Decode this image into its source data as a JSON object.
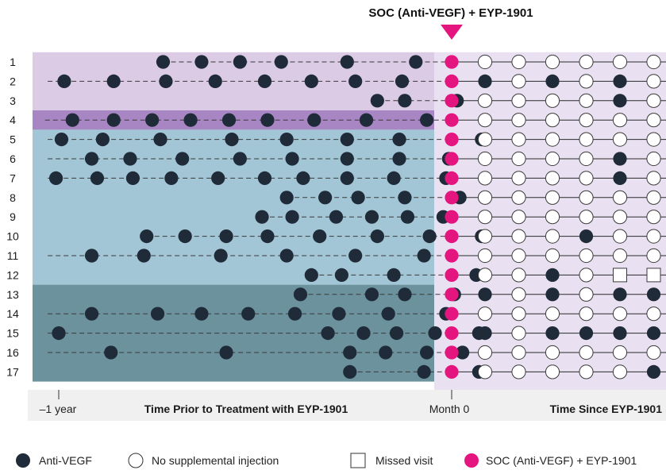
{
  "chart_data": {
    "type": "scatter",
    "header_label": "SOC (Anti-VEGF) + EYP-1901",
    "axis": {
      "minus_one_year": "–1 year",
      "prior_title": "Time Prior to Treatment with EYP-1901",
      "month0": "Month 0",
      "since_title": "Time Since EYP-1901"
    },
    "legend": [
      {
        "key": "anti_vegf",
        "label": "Anti-VEGF"
      },
      {
        "key": "none",
        "label": "No supplemental injection"
      },
      {
        "key": "missed",
        "label": "Missed visit"
      },
      {
        "key": "soc",
        "label": "SOC (Anti-VEGF) + EYP-1901"
      }
    ],
    "colors": {
      "anti_vegf": "#1f2b38",
      "soc": "#e5157f",
      "band_1_3": "#dccbe5",
      "band_4": "#a886c3",
      "band_5_12": "#a3c6d6",
      "band_13_17": "#6c929e",
      "right_panel": "#e9e1f1",
      "axis_band": "#f0f0f0"
    },
    "bands": [
      {
        "rows": [
          1,
          3
        ],
        "color_key": "band_1_3"
      },
      {
        "rows": [
          4,
          4
        ],
        "color_key": "band_4"
      },
      {
        "rows": [
          5,
          12
        ],
        "color_key": "band_5_12"
      },
      {
        "rows": [
          13,
          17
        ],
        "color_key": "band_13_17"
      }
    ],
    "patients": [
      {
        "id": "1",
        "prior": [
          -0.62,
          -0.48,
          -0.34,
          -0.19,
          0.05,
          0.3
        ],
        "line_start": -0.62,
        "post": [
          0,
          0,
          0,
          0,
          0,
          0
        ]
      },
      {
        "id": "2",
        "prior": [
          -0.98,
          -0.8,
          -0.61,
          -0.43,
          -0.25,
          -0.08,
          0.08,
          0.25
        ],
        "line_start": -1.04,
        "post": [
          1,
          0,
          1,
          0,
          1,
          0
        ]
      },
      {
        "id": "3",
        "prior": [
          0.16,
          0.26,
          0.45
        ],
        "line_start": 0.16,
        "post": [
          0,
          0,
          0,
          0,
          1,
          0
        ]
      },
      {
        "id": "4",
        "prior": [
          -0.95,
          -0.8,
          -0.66,
          -0.52,
          -0.38,
          -0.24,
          -0.07,
          0.12,
          0.34
        ],
        "line_start": -1.05,
        "post": [
          0,
          0,
          0,
          0,
          0,
          0
        ]
      },
      {
        "id": "5",
        "prior": [
          -0.99,
          -0.84,
          -0.63,
          -0.37,
          -0.17,
          0.05,
          0.24,
          0.54
        ],
        "line_start": -1.04,
        "post": [
          0,
          0,
          0,
          0,
          0,
          0
        ]
      },
      {
        "id": "6",
        "prior": [
          -0.88,
          -0.74,
          -0.55,
          -0.34,
          -0.15,
          0.05,
          0.24,
          0.42
        ],
        "line_start": -1.04,
        "post": [
          0,
          0,
          0,
          0,
          1,
          0
        ]
      },
      {
        "id": "7",
        "prior": [
          -1.01,
          -0.86,
          -0.73,
          -0.59,
          -0.42,
          -0.25,
          -0.11,
          0.05,
          0.22,
          0.41
        ],
        "line_start": -1.04,
        "post": [
          0,
          0,
          0,
          0,
          1,
          0
        ]
      },
      {
        "id": "8",
        "prior": [
          -0.17,
          -0.03,
          0.09,
          0.26,
          0.46
        ],
        "line_start": -0.17,
        "post": [
          0,
          0,
          0,
          0,
          0,
          0
        ]
      },
      {
        "id": "9",
        "prior": [
          -0.26,
          -0.15,
          0.01,
          0.14,
          0.27,
          0.4
        ],
        "line_start": -0.26,
        "post": [
          0,
          0,
          0,
          0,
          0,
          0
        ]
      },
      {
        "id": "10",
        "prior": [
          -0.68,
          -0.54,
          -0.39,
          -0.24,
          -0.05,
          0.16,
          0.35,
          0.54
        ],
        "line_start": -0.68,
        "post": [
          0,
          0,
          0,
          1,
          0,
          0
        ]
      },
      {
        "id": "11",
        "prior": [
          -0.88,
          -0.69,
          -0.41,
          -0.17,
          0.08,
          0.33
        ],
        "line_start": -1.04,
        "post": [
          0,
          0,
          0,
          0,
          0,
          0
        ]
      },
      {
        "id": "12",
        "prior": [
          -0.08,
          0.03,
          0.22,
          0.52
        ],
        "line_start": -0.08,
        "post": [
          0,
          0,
          1,
          0,
          2,
          2
        ]
      },
      {
        "id": "13",
        "prior": [
          -0.12,
          0.14,
          0.26,
          0.44
        ],
        "line_start": -0.12,
        "post": [
          1,
          0,
          1,
          0,
          1,
          1
        ]
      },
      {
        "id": "14",
        "prior": [
          -0.88,
          -0.64,
          -0.48,
          -0.31,
          -0.14,
          0.02,
          0.2,
          0.41
        ],
        "line_start": -1.04,
        "post": [
          0,
          0,
          0,
          0,
          0,
          0
        ]
      },
      {
        "id": "15",
        "prior": [
          -1.0,
          -0.02,
          0.11,
          0.23,
          0.37,
          0.53
        ],
        "line_start": -1.04,
        "post": [
          1,
          0,
          1,
          1,
          1,
          1
        ]
      },
      {
        "id": "16",
        "prior": [
          -0.81,
          -0.39,
          0.06,
          0.19,
          0.34,
          0.47
        ],
        "line_start": -1.04,
        "post": [
          0,
          0,
          0,
          0,
          0,
          0
        ]
      },
      {
        "id": "17",
        "prior": [
          0.06,
          0.33,
          0.53
        ],
        "line_start": 0.06,
        "post": [
          0,
          0,
          0,
          0,
          0,
          1
        ]
      }
    ],
    "post_state_codes": {
      "0": "none",
      "1": "anti_vegf",
      "2": "missed"
    }
  }
}
